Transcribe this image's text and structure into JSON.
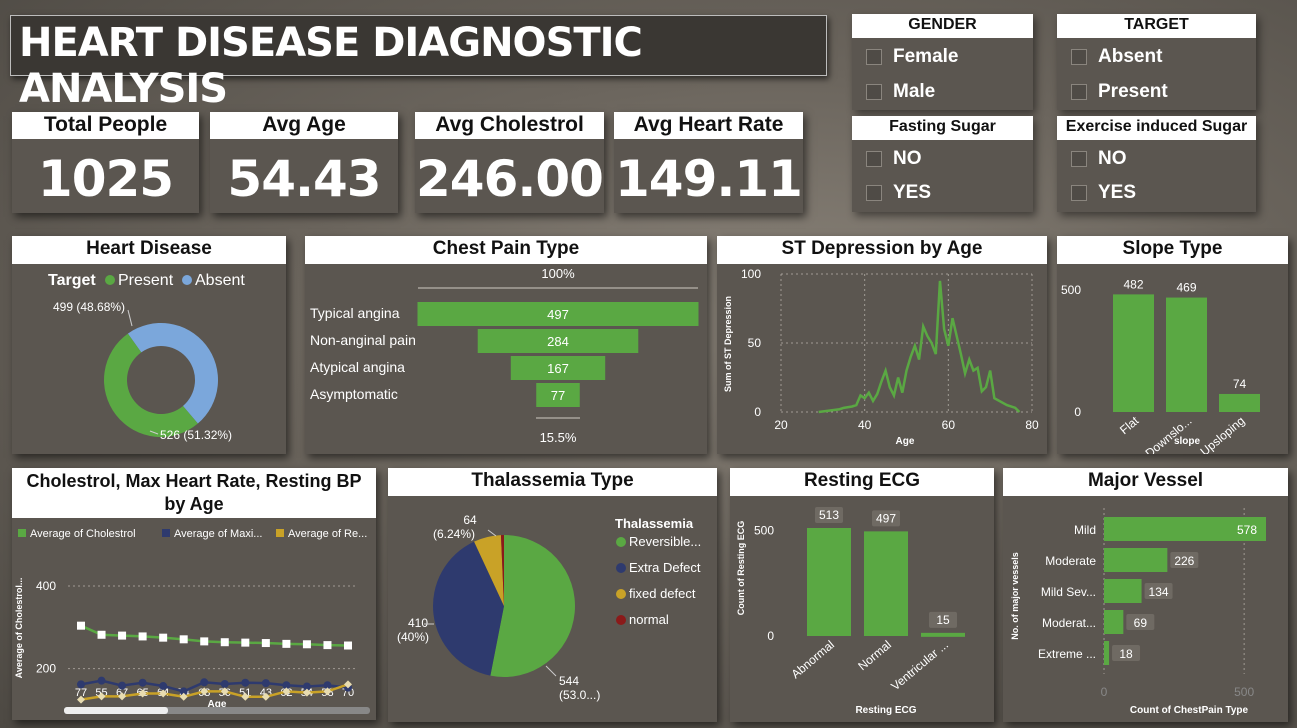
{
  "title": "HEART DISEASE DIAGNOSTIC ANALYSIS",
  "kpis": [
    {
      "label": "Total People",
      "value": "1025"
    },
    {
      "label": "Avg Age",
      "value": "54.43"
    },
    {
      "label": "Avg Cholestrol",
      "value": "246.00"
    },
    {
      "label": "Avg Heart Rate",
      "value": "149.11"
    }
  ],
  "slicers": {
    "gender": {
      "title": "GENDER",
      "options": [
        "Female",
        "Male"
      ]
    },
    "target": {
      "title": "TARGET",
      "options": [
        "Absent",
        "Present"
      ]
    },
    "fasting": {
      "title": "Fasting Sugar",
      "options": [
        "NO",
        "YES"
      ]
    },
    "exercise": {
      "title": "Exercise induced Sugar",
      "options": [
        "NO",
        "YES"
      ]
    }
  },
  "colors": {
    "green": "#5aa843",
    "blue": "#7ba7db",
    "navy": "#2e3a6e",
    "gold": "#c9a227",
    "darkred": "#8b1a1a",
    "white": "#ffffff"
  },
  "chart_data": [
    {
      "id": "heart_disease",
      "type": "pie",
      "title": "Heart Disease",
      "legend_title": "Target",
      "slices": [
        {
          "name": "Present",
          "value": 526,
          "label": "526 (51.32%)"
        },
        {
          "name": "Absent",
          "value": 499,
          "label": "499 (48.68%)"
        }
      ]
    },
    {
      "id": "chest_pain",
      "type": "bar",
      "title": "Chest Pain Type",
      "categories": [
        "Typical angina",
        "Non-anginal pain",
        "Atypical angina",
        "Asymptomatic"
      ],
      "values": [
        497,
        284,
        167,
        77
      ],
      "top_label": "100%",
      "bottom_label": "15.5%"
    },
    {
      "id": "st_depression",
      "type": "line",
      "title": "ST Depression by Age",
      "xlabel": "Age",
      "ylabel": "Sum of ST Depression",
      "xticks": [
        "20",
        "40",
        "60",
        "80"
      ],
      "yticks": [
        "0",
        "50",
        "100"
      ],
      "xlim": [
        20,
        80
      ],
      "ylim": [
        0,
        100
      ],
      "x": [
        29,
        34,
        35,
        37,
        38,
        39,
        40,
        41,
        42,
        43,
        44,
        45,
        46,
        47,
        48,
        49,
        50,
        51,
        52,
        53,
        54,
        55,
        56,
        57,
        58,
        59,
        60,
        61,
        62,
        63,
        64,
        65,
        66,
        67,
        68,
        69,
        70,
        71,
        74,
        76,
        77
      ],
      "y": [
        0,
        2,
        3,
        4,
        5,
        12,
        10,
        14,
        8,
        13,
        22,
        30,
        18,
        12,
        25,
        14,
        30,
        40,
        48,
        38,
        62,
        55,
        50,
        42,
        95,
        60,
        48,
        68,
        55,
        42,
        28,
        38,
        30,
        32,
        15,
        18,
        30,
        10,
        5,
        3,
        0
      ]
    },
    {
      "id": "slope",
      "type": "bar",
      "title": "Slope Type",
      "xlabel": "slope",
      "yticks": [
        "0",
        "500"
      ],
      "ylim": [
        0,
        500
      ],
      "categories": [
        "Flat",
        "Downslo...",
        "Upsloping"
      ],
      "values": [
        482,
        469,
        74
      ]
    },
    {
      "id": "chol_hr_bp",
      "type": "line",
      "title": "Cholestrol, Max Heart Rate, Resting BP by Age",
      "xlabel": "Age",
      "ylabel": "Average of Cholestrol...",
      "yticks": [
        "200",
        "400"
      ],
      "ylim": [
        100,
        400
      ],
      "categories": [
        "77",
        "55",
        "67",
        "65",
        "64",
        "74",
        "63",
        "56",
        "51",
        "43",
        "62",
        "54",
        "58",
        "70"
      ],
      "series": [
        {
          "name": "Average of Cholestrol",
          "values": [
            304,
            282,
            280,
            278,
            275,
            271,
            266,
            264,
            263,
            262,
            260,
            259,
            257,
            256
          ]
        },
        {
          "name": "Average of Maxi...",
          "values": [
            162,
            171,
            159,
            166,
            158,
            145,
            167,
            163,
            166,
            165,
            160,
            157,
            160,
            154
          ]
        },
        {
          "name": "Average of Re...",
          "values": [
            125,
            133,
            133,
            140,
            140,
            132,
            145,
            145,
            132,
            132,
            145,
            142,
            145,
            162
          ]
        }
      ]
    },
    {
      "id": "thalassemia",
      "type": "pie",
      "title": "Thalassemia Type",
      "legend_title": "Thalassemia",
      "slices": [
        {
          "name": "Reversible...",
          "value": 544,
          "label": "544\n(53.0...)"
        },
        {
          "name": "Extra Defect",
          "value": 410,
          "label": "410\n(40%)"
        },
        {
          "name": "fixed defect",
          "value": 64,
          "label": "64\n(6.24%)"
        },
        {
          "name": "normal",
          "value": 7,
          "label": ""
        }
      ]
    },
    {
      "id": "resting_ecg",
      "type": "bar",
      "title": "Resting ECG",
      "xlabel": "Resting ECG",
      "ylabel": "Count of Resting ECG",
      "yticks": [
        "0",
        "500"
      ],
      "ylim": [
        0,
        513
      ],
      "categories": [
        "Abnormal",
        "Normal",
        "Ventricular ..."
      ],
      "values": [
        513,
        497,
        15
      ]
    },
    {
      "id": "major_vessel",
      "type": "bar",
      "title": "Major Vessel",
      "xlabel": "Count of ChestPain Type",
      "ylabel": "No. of major vessels",
      "xticks": [
        "0",
        "500"
      ],
      "xlim": [
        0,
        578
      ],
      "categories": [
        "Mild",
        "Moderate",
        "Mild Sev...",
        "Moderat...",
        "Extreme ..."
      ],
      "values": [
        578,
        226,
        134,
        69,
        18
      ]
    }
  ]
}
